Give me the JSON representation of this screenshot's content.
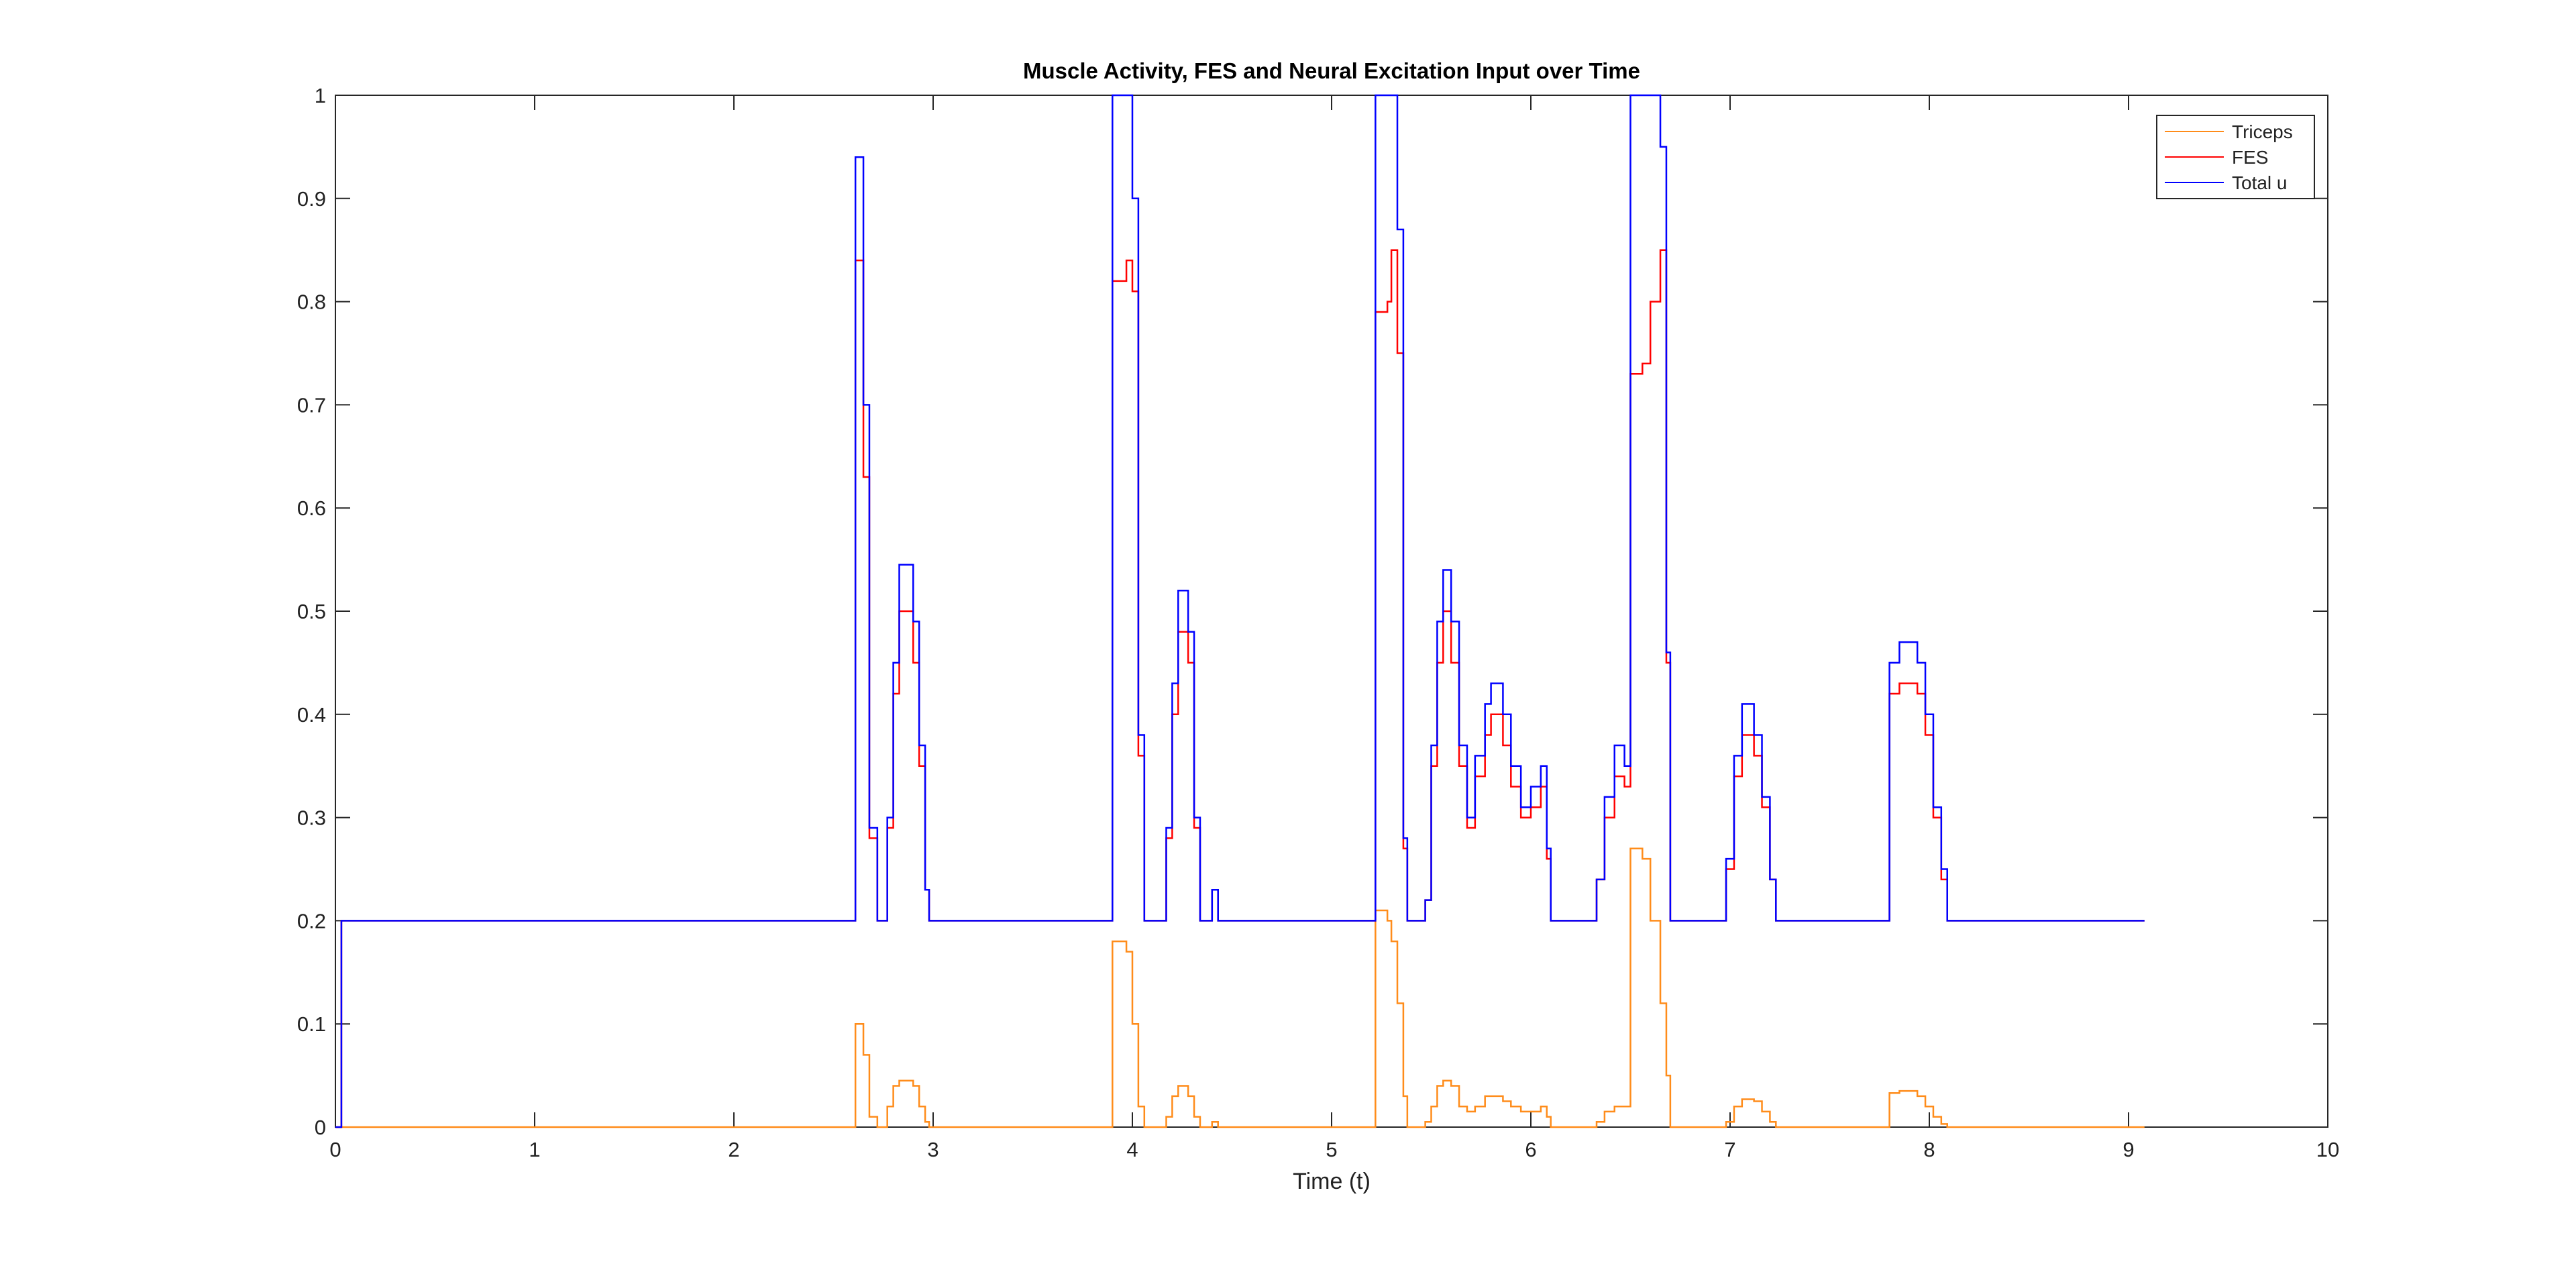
{
  "chart_data": {
    "type": "stairs",
    "title": "Muscle Activity, FES and Neural Excitation Input over Time",
    "xlabel": "Time (t)",
    "x": [
      0,
      0.03,
      2.61,
      2.65,
      2.68,
      2.72,
      2.77,
      2.8,
      2.83,
      2.9,
      2.93,
      2.96,
      2.98,
      3.9,
      3.97,
      4.0,
      4.03,
      4.06,
      4.17,
      4.2,
      4.23,
      4.28,
      4.31,
      4.34,
      4.4,
      4.43,
      5.22,
      5.28,
      5.3,
      5.33,
      5.36,
      5.38,
      5.47,
      5.5,
      5.53,
      5.56,
      5.6,
      5.64,
      5.68,
      5.72,
      5.77,
      5.8,
      5.86,
      5.9,
      5.95,
      6.0,
      6.05,
      6.08,
      6.1,
      6.33,
      6.37,
      6.42,
      6.47,
      6.5,
      6.56,
      6.6,
      6.65,
      6.68,
      6.7,
      6.98,
      7.02,
      7.06,
      7.12,
      7.16,
      7.2,
      7.23,
      7.8,
      7.85,
      7.9,
      7.94,
      7.98,
      8.02,
      8.06,
      8.09,
      9.08
    ],
    "series": [
      {
        "name": "Triceps",
        "color": "#ff8c1a",
        "values": [
          0,
          0,
          0.1,
          0.07,
          0.01,
          0,
          0.02,
          0.04,
          0.045,
          0.04,
          0.02,
          0.005,
          0,
          0.18,
          0.17,
          0.1,
          0.02,
          0,
          0.01,
          0.03,
          0.04,
          0.03,
          0.01,
          0,
          0.005,
          0,
          0.21,
          0.2,
          0.18,
          0.12,
          0.03,
          0,
          0.005,
          0.02,
          0.04,
          0.045,
          0.04,
          0.02,
          0.015,
          0.02,
          0.03,
          0.03,
          0.025,
          0.02,
          0.015,
          0.015,
          0.02,
          0.01,
          0,
          0.005,
          0.015,
          0.02,
          0.02,
          0.27,
          0.26,
          0.2,
          0.12,
          0.05,
          0,
          0.005,
          0.02,
          0.027,
          0.025,
          0.015,
          0.005,
          0,
          0.033,
          0.035,
          0.035,
          0.03,
          0.02,
          0.01,
          0.003,
          0,
          0
        ]
      },
      {
        "name": "FES",
        "color": "#ff0000",
        "values": [
          0,
          0.2,
          0.84,
          0.63,
          0.28,
          0.2,
          0.29,
          0.42,
          0.5,
          0.45,
          0.35,
          0.23,
          0.2,
          0.82,
          0.84,
          0.81,
          0.36,
          0.2,
          0.28,
          0.4,
          0.48,
          0.45,
          0.29,
          0.2,
          0.23,
          0.2,
          0.79,
          0.8,
          0.85,
          0.75,
          0.27,
          0.2,
          0.22,
          0.35,
          0.45,
          0.5,
          0.45,
          0.35,
          0.29,
          0.34,
          0.38,
          0.4,
          0.37,
          0.33,
          0.3,
          0.31,
          0.33,
          0.26,
          0.2,
          0.24,
          0.3,
          0.34,
          0.33,
          0.73,
          0.74,
          0.8,
          0.85,
          0.45,
          0.2,
          0.25,
          0.34,
          0.38,
          0.36,
          0.31,
          0.24,
          0.2,
          0.42,
          0.43,
          0.43,
          0.42,
          0.38,
          0.3,
          0.24,
          0.2,
          0.2
        ]
      },
      {
        "name": "Total u",
        "color": "#0000ff",
        "values": [
          0,
          0.2,
          0.94,
          0.7,
          0.29,
          0.2,
          0.3,
          0.45,
          0.545,
          0.49,
          0.37,
          0.23,
          0.2,
          1,
          1,
          0.9,
          0.38,
          0.2,
          0.29,
          0.43,
          0.52,
          0.48,
          0.3,
          0.2,
          0.23,
          0.2,
          1,
          1,
          1,
          0.87,
          0.28,
          0.2,
          0.22,
          0.37,
          0.49,
          0.54,
          0.49,
          0.37,
          0.3,
          0.36,
          0.41,
          0.43,
          0.4,
          0.35,
          0.31,
          0.33,
          0.35,
          0.27,
          0.2,
          0.24,
          0.32,
          0.37,
          0.35,
          1,
          1,
          1,
          0.95,
          0.46,
          0.2,
          0.26,
          0.36,
          0.41,
          0.38,
          0.32,
          0.24,
          0.2,
          0.45,
          0.47,
          0.47,
          0.45,
          0.4,
          0.31,
          0.25,
          0.2,
          0.2
        ]
      }
    ],
    "xlim": [
      0,
      10
    ],
    "xticks": [
      0,
      1,
      2,
      3,
      4,
      5,
      6,
      7,
      8,
      9,
      10
    ],
    "ylim": [
      0,
      1
    ],
    "yticks": [
      0,
      0.1,
      0.2,
      0.3,
      0.4,
      0.5,
      0.6,
      0.7,
      0.8,
      0.9,
      1
    ],
    "legend": "northeast"
  }
}
